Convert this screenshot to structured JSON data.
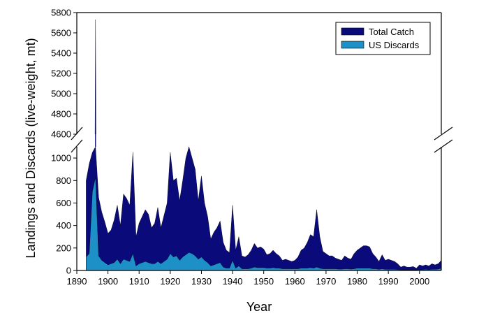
{
  "chart_data": {
    "type": "area",
    "xlabel": "Year",
    "ylabel": "Landings and Discards (live-weight, mt)",
    "xlim": [
      1890,
      2007
    ],
    "x_ticks": [
      "1890",
      "1900",
      "1910",
      "1920",
      "1930",
      "1940",
      "1950",
      "1960",
      "1970",
      "1980",
      "1990",
      "2000"
    ],
    "y_broken_axis": true,
    "y_lower_range": [
      0,
      1100
    ],
    "y_upper_range": [
      4600,
      5800
    ],
    "y_lower_ticks": [
      "0",
      "200",
      "400",
      "600",
      "800",
      "1000"
    ],
    "y_upper_ticks": [
      "4600",
      "4800",
      "5000",
      "5200",
      "5400",
      "5600",
      "5800"
    ],
    "legend_position": "top-right",
    "series": [
      {
        "name": "Total Catch",
        "color": "#0a0a7a",
        "points": [
          [
            1893,
            800
          ],
          [
            1894,
            950
          ],
          [
            1895,
            1050
          ],
          [
            1896,
            5730
          ],
          [
            1897,
            650
          ],
          [
            1898,
            520
          ],
          [
            1899,
            430
          ],
          [
            1900,
            330
          ],
          [
            1901,
            360
          ],
          [
            1902,
            450
          ],
          [
            1903,
            580
          ],
          [
            1904,
            400
          ],
          [
            1905,
            680
          ],
          [
            1906,
            640
          ],
          [
            1907,
            580
          ],
          [
            1908,
            1050
          ],
          [
            1909,
            300
          ],
          [
            1910,
            420
          ],
          [
            1911,
            480
          ],
          [
            1912,
            540
          ],
          [
            1913,
            500
          ],
          [
            1914,
            380
          ],
          [
            1915,
            420
          ],
          [
            1916,
            560
          ],
          [
            1917,
            380
          ],
          [
            1918,
            490
          ],
          [
            1919,
            600
          ],
          [
            1920,
            1050
          ],
          [
            1921,
            800
          ],
          [
            1922,
            820
          ],
          [
            1923,
            620
          ],
          [
            1924,
            800
          ],
          [
            1925,
            1000
          ],
          [
            1926,
            1100
          ],
          [
            1927,
            1000
          ],
          [
            1928,
            900
          ],
          [
            1929,
            620
          ],
          [
            1930,
            840
          ],
          [
            1931,
            600
          ],
          [
            1932,
            480
          ],
          [
            1933,
            280
          ],
          [
            1934,
            340
          ],
          [
            1935,
            380
          ],
          [
            1936,
            440
          ],
          [
            1937,
            250
          ],
          [
            1938,
            180
          ],
          [
            1939,
            160
          ],
          [
            1940,
            580
          ],
          [
            1941,
            180
          ],
          [
            1942,
            300
          ],
          [
            1943,
            130
          ],
          [
            1944,
            120
          ],
          [
            1945,
            140
          ],
          [
            1946,
            180
          ],
          [
            1947,
            240
          ],
          [
            1948,
            200
          ],
          [
            1949,
            210
          ],
          [
            1950,
            190
          ],
          [
            1951,
            140
          ],
          [
            1952,
            150
          ],
          [
            1953,
            180
          ],
          [
            1954,
            150
          ],
          [
            1955,
            130
          ],
          [
            1956,
            90
          ],
          [
            1957,
            100
          ],
          [
            1958,
            90
          ],
          [
            1959,
            80
          ],
          [
            1960,
            90
          ],
          [
            1961,
            120
          ],
          [
            1962,
            180
          ],
          [
            1963,
            200
          ],
          [
            1964,
            250
          ],
          [
            1965,
            320
          ],
          [
            1966,
            300
          ],
          [
            1967,
            540
          ],
          [
            1968,
            300
          ],
          [
            1969,
            170
          ],
          [
            1970,
            150
          ],
          [
            1971,
            130
          ],
          [
            1972,
            130
          ],
          [
            1973,
            110
          ],
          [
            1974,
            100
          ],
          [
            1975,
            90
          ],
          [
            1976,
            130
          ],
          [
            1977,
            110
          ],
          [
            1978,
            100
          ],
          [
            1979,
            150
          ],
          [
            1980,
            180
          ],
          [
            1981,
            200
          ],
          [
            1982,
            220
          ],
          [
            1983,
            220
          ],
          [
            1984,
            210
          ],
          [
            1985,
            150
          ],
          [
            1986,
            120
          ],
          [
            1987,
            80
          ],
          [
            1988,
            140
          ],
          [
            1989,
            90
          ],
          [
            1990,
            100
          ],
          [
            1991,
            90
          ],
          [
            1992,
            80
          ],
          [
            1993,
            60
          ],
          [
            1994,
            30
          ],
          [
            1995,
            40
          ],
          [
            1996,
            30
          ],
          [
            1997,
            30
          ],
          [
            1998,
            35
          ],
          [
            1999,
            20
          ],
          [
            2000,
            50
          ],
          [
            2001,
            40
          ],
          [
            2002,
            50
          ],
          [
            2003,
            40
          ],
          [
            2004,
            60
          ],
          [
            2005,
            50
          ],
          [
            2006,
            60
          ],
          [
            2007,
            90
          ]
        ]
      },
      {
        "name": "US Discards",
        "color": "#1e90c8",
        "points": [
          [
            1893,
            120
          ],
          [
            1894,
            150
          ],
          [
            1895,
            700
          ],
          [
            1896,
            830
          ],
          [
            1897,
            130
          ],
          [
            1898,
            90
          ],
          [
            1899,
            70
          ],
          [
            1900,
            50
          ],
          [
            1901,
            60
          ],
          [
            1902,
            70
          ],
          [
            1903,
            100
          ],
          [
            1904,
            60
          ],
          [
            1905,
            100
          ],
          [
            1906,
            90
          ],
          [
            1907,
            80
          ],
          [
            1908,
            150
          ],
          [
            1909,
            40
          ],
          [
            1910,
            60
          ],
          [
            1911,
            70
          ],
          [
            1912,
            80
          ],
          [
            1913,
            70
          ],
          [
            1914,
            60
          ],
          [
            1915,
            60
          ],
          [
            1916,
            80
          ],
          [
            1917,
            60
          ],
          [
            1918,
            80
          ],
          [
            1919,
            100
          ],
          [
            1920,
            150
          ],
          [
            1921,
            120
          ],
          [
            1922,
            130
          ],
          [
            1923,
            90
          ],
          [
            1924,
            120
          ],
          [
            1925,
            140
          ],
          [
            1926,
            160
          ],
          [
            1927,
            150
          ],
          [
            1928,
            130
          ],
          [
            1929,
            100
          ],
          [
            1930,
            120
          ],
          [
            1931,
            90
          ],
          [
            1932,
            70
          ],
          [
            1933,
            40
          ],
          [
            1934,
            50
          ],
          [
            1935,
            60
          ],
          [
            1936,
            70
          ],
          [
            1937,
            30
          ],
          [
            1938,
            20
          ],
          [
            1939,
            20
          ],
          [
            1940,
            90
          ],
          [
            1941,
            20
          ],
          [
            1942,
            40
          ],
          [
            1943,
            15
          ],
          [
            1944,
            15
          ],
          [
            1945,
            15
          ],
          [
            1946,
            20
          ],
          [
            1947,
            30
          ],
          [
            1948,
            25
          ],
          [
            1949,
            25
          ],
          [
            1950,
            25
          ],
          [
            1951,
            20
          ],
          [
            1952,
            20
          ],
          [
            1953,
            25
          ],
          [
            1954,
            20
          ],
          [
            1955,
            20
          ],
          [
            1956,
            15
          ],
          [
            1957,
            15
          ],
          [
            1958,
            15
          ],
          [
            1959,
            15
          ],
          [
            1960,
            15
          ],
          [
            1961,
            15
          ],
          [
            1962,
            20
          ],
          [
            1963,
            20
          ],
          [
            1964,
            20
          ],
          [
            1965,
            25
          ],
          [
            1966,
            20
          ],
          [
            1967,
            30
          ],
          [
            1968,
            20
          ],
          [
            1969,
            15
          ],
          [
            1970,
            15
          ],
          [
            1971,
            15
          ],
          [
            1972,
            15
          ],
          [
            1973,
            15
          ],
          [
            1974,
            12
          ],
          [
            1975,
            12
          ],
          [
            1976,
            15
          ],
          [
            1977,
            15
          ],
          [
            1978,
            12
          ],
          [
            1979,
            15
          ],
          [
            1980,
            20
          ],
          [
            1981,
            20
          ],
          [
            1982,
            20
          ],
          [
            1983,
            20
          ],
          [
            1984,
            20
          ],
          [
            1985,
            15
          ],
          [
            1986,
            15
          ],
          [
            1987,
            10
          ],
          [
            1988,
            15
          ],
          [
            1989,
            10
          ],
          [
            1990,
            10
          ],
          [
            1991,
            10
          ],
          [
            1992,
            10
          ],
          [
            1993,
            8
          ],
          [
            1994,
            5
          ],
          [
            1995,
            5
          ],
          [
            1996,
            5
          ],
          [
            1997,
            5
          ],
          [
            1998,
            5
          ],
          [
            1999,
            5
          ],
          [
            2000,
            8
          ],
          [
            2001,
            8
          ],
          [
            2002,
            10
          ],
          [
            2003,
            8
          ],
          [
            2004,
            10
          ],
          [
            2005,
            10
          ],
          [
            2006,
            12
          ],
          [
            2007,
            20
          ]
        ]
      }
    ]
  }
}
